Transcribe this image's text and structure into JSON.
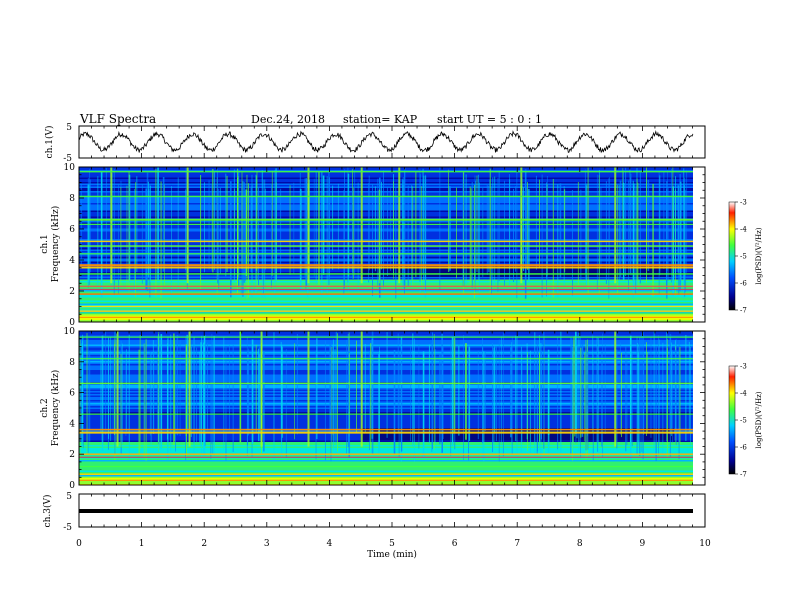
{
  "header": {
    "title": "VLF Spectra",
    "date": "Dec.24, 2018",
    "station": "station= KAP",
    "start": "start  UT =   5 : 0  : 1"
  },
  "chart_data": [
    {
      "type": "line",
      "panel": "ch1-waveform",
      "ylabel": "ch.1(V)",
      "ylim": [
        -5,
        5
      ],
      "yticks": [
        "5",
        "-5"
      ],
      "xlim": [
        0,
        10
      ],
      "description_of_signal": "noisy oscillation",
      "approx_amplitude_V": 2.5,
      "approx_period_min": 0.57
    },
    {
      "type": "heatmap",
      "panel": "ch1-spectrogram",
      "ylabel": "ch.1\nFrequency (kHz)",
      "ylim": [
        0,
        10
      ],
      "yticks": [
        "0",
        "2",
        "4",
        "6",
        "8",
        "10"
      ],
      "xlim": [
        0,
        10
      ],
      "colorbar": {
        "label": "log(PSD)(V²/Hz)",
        "range": [
          -7,
          -3
        ],
        "ticks": [
          "-3",
          "-4",
          "-5",
          "-6",
          "-7"
        ]
      }
    },
    {
      "type": "heatmap",
      "panel": "ch2-spectrogram",
      "ylabel": "ch.2\nFrequency (kHz)",
      "ylim": [
        0,
        10
      ],
      "yticks": [
        "0",
        "2",
        "4",
        "6",
        "8",
        "10"
      ],
      "xlim": [
        0,
        10
      ],
      "colorbar": {
        "label": "log(PSD)(V²/Hz)",
        "range": [
          -7,
          -3
        ],
        "ticks": [
          "-3",
          "-4",
          "-5",
          "-6",
          "-7"
        ]
      }
    },
    {
      "type": "line",
      "panel": "ch3-waveform",
      "ylabel": "ch.3(V)",
      "ylim": [
        -5,
        5
      ],
      "yticks": [
        "5",
        "-5"
      ],
      "xlim": [
        0,
        10
      ],
      "constant_value_V": 0,
      "xlabel": "Time  (min)",
      "xticks": [
        "0",
        "1",
        "2",
        "3",
        "4",
        "5",
        "6",
        "7",
        "8",
        "9",
        "10"
      ]
    }
  ]
}
